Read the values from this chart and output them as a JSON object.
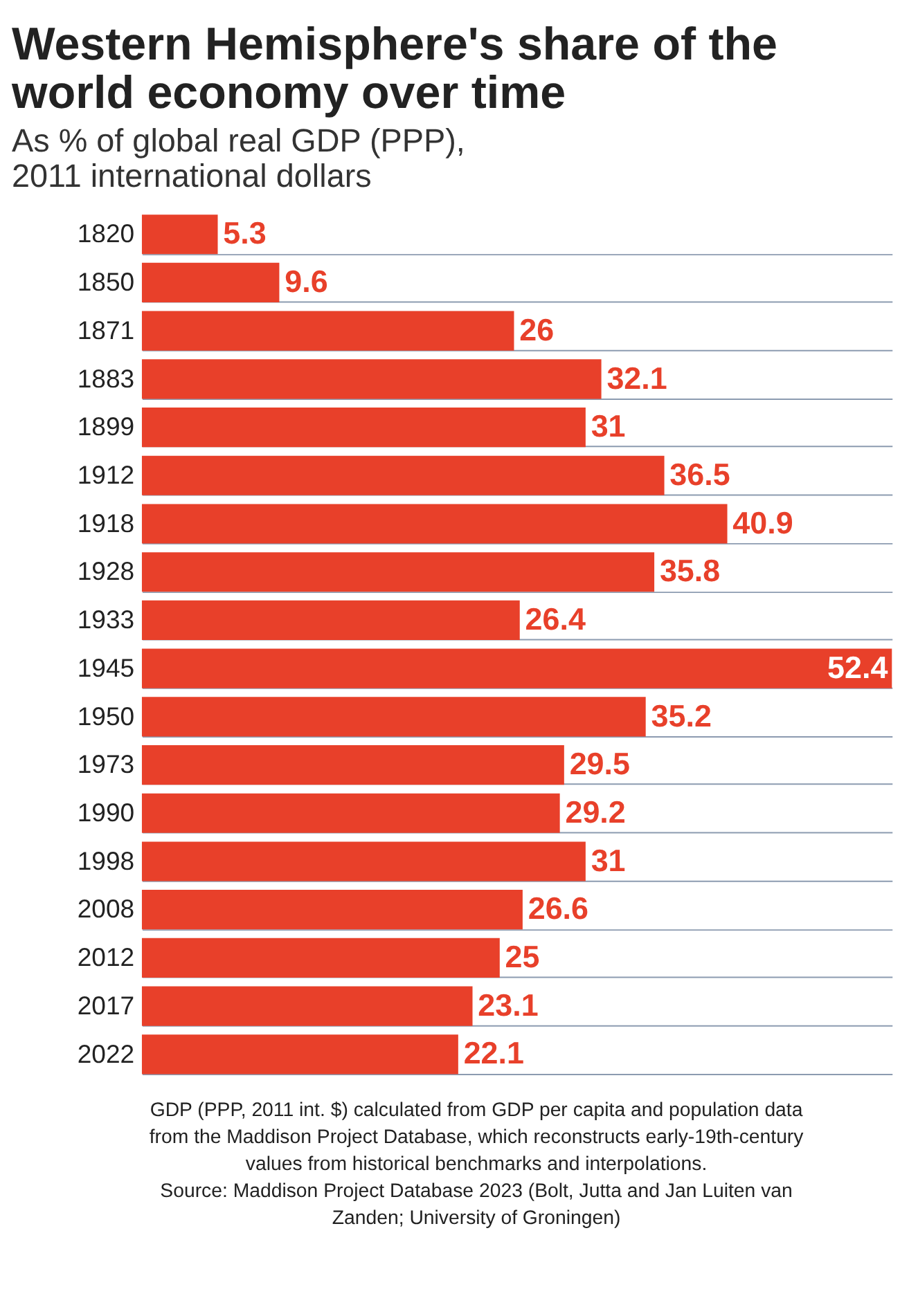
{
  "chart_data": {
    "type": "bar",
    "orientation": "horizontal",
    "title": "Western Hemisphere's share of the world economy over time",
    "subtitle": "As % of global real GDP (PPP), 2011 international dollars",
    "categories": [
      "1820",
      "1850",
      "1871",
      "1883",
      "1899",
      "1912",
      "1918",
      "1928",
      "1933",
      "1945",
      "1950",
      "1973",
      "1990",
      "1998",
      "2008",
      "2012",
      "2017",
      "2022"
    ],
    "values": [
      5.3,
      9.6,
      26,
      32.1,
      31,
      36.5,
      40.9,
      35.8,
      26.4,
      52.4,
      35.2,
      29.5,
      29.2,
      31,
      26.6,
      25,
      23.1,
      22.1
    ],
    "color": "#e8402a",
    "data_labels": true,
    "grid": "y",
    "annotations": [
      "GDP (PPP, 2011 int. $) calculated from GDP per capita and population data from the Maddison Project Database, which reconstructs early-19th-century values from historical benchmarks and interpolations.",
      "Source: Maddison Project Database 2023 (Bolt, Jutta and Jan Luiten van Zanden; University of Groningen)"
    ]
  }
}
